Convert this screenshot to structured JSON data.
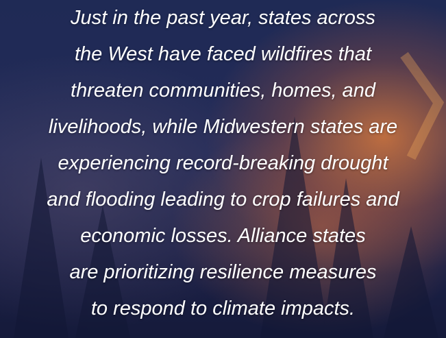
{
  "quote": {
    "lines": [
      "Just in the past year, states across",
      "the West have faced wildfires that",
      "threaten communities, homes, and",
      "livelihoods, while Midwestern states are",
      "experiencing record-breaking drought",
      "and flooding leading to crop failures and",
      "economic losses. Alliance states",
      "are prioritizing resilience measures",
      "to respond to climate impacts."
    ]
  }
}
